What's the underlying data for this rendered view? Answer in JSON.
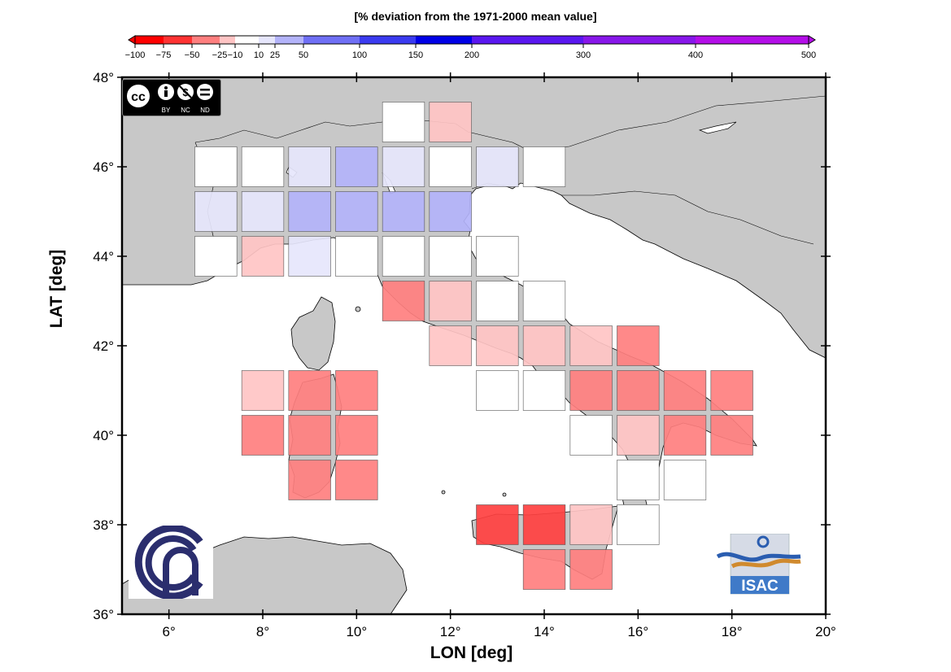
{
  "colorbar": {
    "title": "[% deviation from the 1971-2000 mean value]",
    "classes": [
      {
        "from": -100,
        "to": -75,
        "color": "#ff0000"
      },
      {
        "from": -75,
        "to": -50,
        "color": "#ff3333"
      },
      {
        "from": -50,
        "to": -25,
        "color": "#ff7f7f"
      },
      {
        "from": -25,
        "to": -10,
        "color": "#ffc4c4"
      },
      {
        "from": -10,
        "to": 10,
        "color": "#ffffff"
      },
      {
        "from": 10,
        "to": 25,
        "color": "#e6e6fc"
      },
      {
        "from": 25,
        "to": 50,
        "color": "#b3b3fa"
      },
      {
        "from": 50,
        "to": 100,
        "color": "#6f6ff5"
      },
      {
        "from": 100,
        "to": 150,
        "color": "#3b3bf0"
      },
      {
        "from": 150,
        "to": 200,
        "color": "#0000e6"
      },
      {
        "from": 200,
        "to": 300,
        "color": "#5a17f0"
      },
      {
        "from": 300,
        "to": 400,
        "color": "#8817ea"
      },
      {
        "from": 400,
        "to": 500,
        "color": "#b40ee8"
      }
    ],
    "tick_labels": [
      "−100",
      "−75",
      "−50",
      "−25",
      "−10",
      "10",
      "25",
      "50",
      "100",
      "150",
      "200",
      "300",
      "400",
      "500"
    ]
  },
  "axes": {
    "xlabel": "LON [deg]",
    "ylabel": "LAT [deg]",
    "x_ticks": [
      6,
      8,
      10,
      12,
      14,
      16,
      18,
      20
    ],
    "y_ticks": [
      36,
      38,
      40,
      42,
      44,
      46,
      48
    ],
    "x_tick_labels": [
      "6°",
      "8°",
      "10°",
      "12°",
      "14°",
      "16°",
      "18°",
      "20°"
    ],
    "y_tick_labels": [
      "36°",
      "38°",
      "40°",
      "42°",
      "44°",
      "46°",
      "48°"
    ],
    "xlim": [
      5,
      20
    ],
    "ylim": [
      36,
      48
    ]
  },
  "cell_size_deg": 1,
  "cells": [
    {
      "lon": 11,
      "lat": 47,
      "cls": "white"
    },
    {
      "lon": 12,
      "lat": 47,
      "cls": "lightred"
    },
    {
      "lon": 7,
      "lat": 46,
      "cls": "white"
    },
    {
      "lon": 8,
      "lat": 46,
      "cls": "white"
    },
    {
      "lon": 9,
      "lat": 46,
      "cls": "lightblue"
    },
    {
      "lon": 10,
      "lat": 46,
      "cls": "blue"
    },
    {
      "lon": 11,
      "lat": 46,
      "cls": "lightblue"
    },
    {
      "lon": 12,
      "lat": 46,
      "cls": "white"
    },
    {
      "lon": 13,
      "lat": 46,
      "cls": "lightblue"
    },
    {
      "lon": 14,
      "lat": 46,
      "cls": "white"
    },
    {
      "lon": 7,
      "lat": 45,
      "cls": "lightblue"
    },
    {
      "lon": 8,
      "lat": 45,
      "cls": "lightblue"
    },
    {
      "lon": 9,
      "lat": 45,
      "cls": "blue"
    },
    {
      "lon": 10,
      "lat": 45,
      "cls": "blue"
    },
    {
      "lon": 11,
      "lat": 45,
      "cls": "blue"
    },
    {
      "lon": 12,
      "lat": 45,
      "cls": "blue"
    },
    {
      "lon": 7,
      "lat": 44,
      "cls": "white"
    },
    {
      "lon": 8,
      "lat": 44,
      "cls": "lightred"
    },
    {
      "lon": 9,
      "lat": 44,
      "cls": "lightblue"
    },
    {
      "lon": 10,
      "lat": 44,
      "cls": "white"
    },
    {
      "lon": 11,
      "lat": 44,
      "cls": "white"
    },
    {
      "lon": 12,
      "lat": 44,
      "cls": "white"
    },
    {
      "lon": 13,
      "lat": 44,
      "cls": "white"
    },
    {
      "lon": 11,
      "lat": 43,
      "cls": "red"
    },
    {
      "lon": 12,
      "lat": 43,
      "cls": "lightred"
    },
    {
      "lon": 13,
      "lat": 43,
      "cls": "white"
    },
    {
      "lon": 14,
      "lat": 43,
      "cls": "white"
    },
    {
      "lon": 12,
      "lat": 42,
      "cls": "lightred"
    },
    {
      "lon": 13,
      "lat": 42,
      "cls": "lightred"
    },
    {
      "lon": 14,
      "lat": 42,
      "cls": "lightred"
    },
    {
      "lon": 15,
      "lat": 42,
      "cls": "lightred"
    },
    {
      "lon": 16,
      "lat": 42,
      "cls": "red"
    },
    {
      "lon": 8,
      "lat": 41,
      "cls": "lightred"
    },
    {
      "lon": 9,
      "lat": 41,
      "cls": "red"
    },
    {
      "lon": 10,
      "lat": 41,
      "cls": "red"
    },
    {
      "lon": 13,
      "lat": 41,
      "cls": "white"
    },
    {
      "lon": 14,
      "lat": 41,
      "cls": "white"
    },
    {
      "lon": 15,
      "lat": 41,
      "cls": "red"
    },
    {
      "lon": 16,
      "lat": 41,
      "cls": "red"
    },
    {
      "lon": 17,
      "lat": 41,
      "cls": "red"
    },
    {
      "lon": 18,
      "lat": 41,
      "cls": "red"
    },
    {
      "lon": 8,
      "lat": 40,
      "cls": "red"
    },
    {
      "lon": 9,
      "lat": 40,
      "cls": "red"
    },
    {
      "lon": 10,
      "lat": 40,
      "cls": "red"
    },
    {
      "lon": 15,
      "lat": 40,
      "cls": "white"
    },
    {
      "lon": 16,
      "lat": 40,
      "cls": "lightred"
    },
    {
      "lon": 17,
      "lat": 40,
      "cls": "red"
    },
    {
      "lon": 18,
      "lat": 40,
      "cls": "red"
    },
    {
      "lon": 9,
      "lat": 39,
      "cls": "red"
    },
    {
      "lon": 10,
      "lat": 39,
      "cls": "red"
    },
    {
      "lon": 16,
      "lat": 39,
      "cls": "white"
    },
    {
      "lon": 17,
      "lat": 39,
      "cls": "white"
    },
    {
      "lon": 13,
      "lat": 38,
      "cls": "darkred"
    },
    {
      "lon": 14,
      "lat": 38,
      "cls": "darkred"
    },
    {
      "lon": 15,
      "lat": 38,
      "cls": "lightred"
    },
    {
      "lon": 16,
      "lat": 38,
      "cls": "white"
    },
    {
      "lon": 14,
      "lat": 37,
      "cls": "red"
    },
    {
      "lon": 15,
      "lat": 37,
      "cls": "red"
    }
  ],
  "cell_colors": {
    "white": "#ffffff",
    "lightred": "#ffc4c4",
    "red": "#ff7f7f",
    "darkred": "#ff4040",
    "lightblue": "#e6e6fc",
    "blue": "#b3b3fa"
  },
  "land_color": "#c8c8c8",
  "sea_color": "#ffffff",
  "logos": {
    "license_icons": "cc-by-nc-nd-icon",
    "license_labels": [
      "BY",
      "NC",
      "ND"
    ],
    "org_left": "cnr-logo-icon",
    "org_right_text": "ISAC"
  }
}
